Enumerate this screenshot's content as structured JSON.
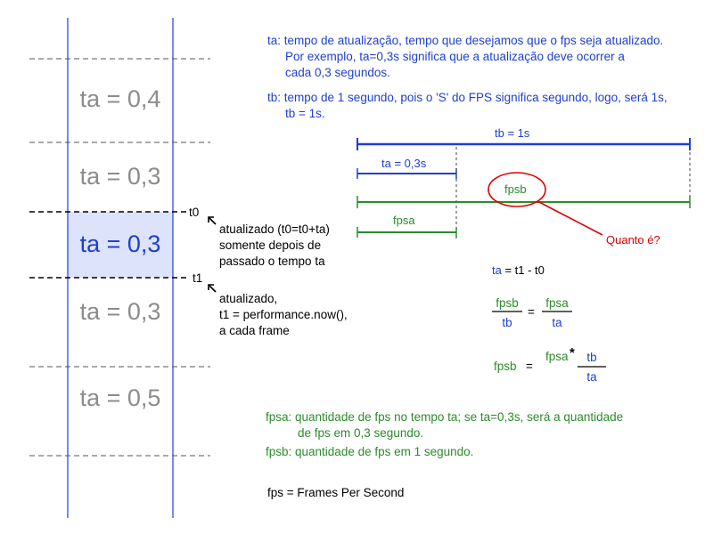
{
  "timeline": {
    "rows": [
      {
        "label": "ta = 0,4"
      },
      {
        "label": "ta = 0,3"
      },
      {
        "label": "ta = 0,3"
      },
      {
        "label": "ta = 0,3"
      },
      {
        "label": "ta = 0,5"
      }
    ],
    "marker_t0": "t0",
    "marker_t1": "t1",
    "highlight_color": "#dde3fb"
  },
  "annotations": {
    "t0_note": [
      "atualizado (t0=t0+ta)",
      "somente depois de",
      "passado o tempo ta"
    ],
    "t1_note": [
      "atualizado,",
      "t1 = performance.now(),",
      "a cada frame"
    ]
  },
  "definitions": {
    "ta": [
      "ta: tempo de atualização, tempo que desejamos que o fps seja atualizado.",
      "Por exemplo, ta=0,3s significa que a atualização deve ocorrer a",
      "cada 0,3 segundos."
    ],
    "tb": [
      "tb: tempo de 1 segundo, pois o 'S' do FPS significa segundo, logo,  será 1s,",
      "tb = 1s."
    ]
  },
  "bars": {
    "tb_label": "tb = 1s",
    "ta_label": "ta = 0,3s",
    "fpsb_label": "fpsb",
    "fpsa_label": "fpsa",
    "question": "Quanto é?"
  },
  "equations": {
    "ta_eq": {
      "lhs": "ta",
      "rhs": " = t1 - t0"
    },
    "ratio": {
      "num1": "fpsb",
      "den1": "tb",
      "eq": "=",
      "num2": "fpsa",
      "den2": "ta"
    },
    "result": {
      "lhs": "fpsb",
      "eq": "=",
      "factor": "fpsa",
      "star": "*",
      "num": "tb",
      "den": "ta"
    }
  },
  "footer": {
    "fpsa_def": [
      "fpsa: quantidade de fps no tempo ta; se ta=0,3s, será a quantidade",
      "de fps em 0,3 segundo."
    ],
    "fpsb_def": "fpsb: quantidade de fps em 1 segundo.",
    "fps_def": "fps = Frames Per Second"
  },
  "colors": {
    "blue": "#1f3fd0",
    "green": "#2c8a2c",
    "red": "#e00000",
    "grey": "#8c8c8c"
  }
}
